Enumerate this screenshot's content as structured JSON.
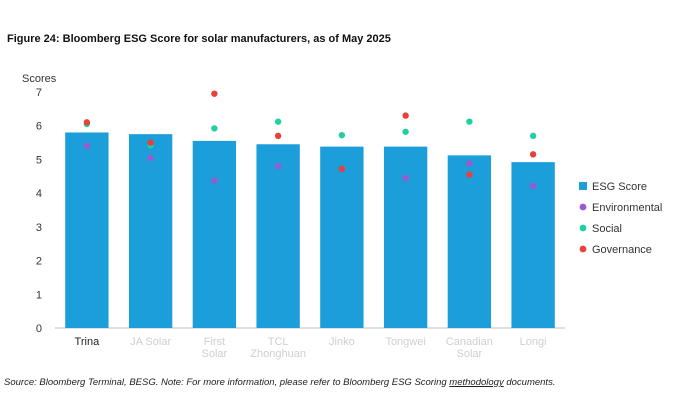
{
  "title": "Figure 24: Bloomberg ESG Score for solar manufacturers, as of May 2025",
  "source": {
    "prefix": "Source: Bloomberg Terminal, BESG. Note: For more information, please refer to Bloomberg ESG Scoring ",
    "link": "methodology",
    "suffix": " documents."
  },
  "chart_data": {
    "type": "bar",
    "ylabel": "Scores",
    "ylim": [
      0,
      7
    ],
    "yticks": [
      0,
      1,
      2,
      3,
      4,
      5,
      6,
      7
    ],
    "grid": false,
    "legend_position": "right",
    "categories": [
      "Trina",
      "JA Solar",
      "First Solar",
      "TCL Zhonghuan",
      "Jinko",
      "Tongwei",
      "Canadian Solar",
      "Longi"
    ],
    "series": [
      {
        "name": "ESG Score",
        "kind": "bar",
        "color": "#1b9ed9",
        "values": [
          5.8,
          5.75,
          5.55,
          5.45,
          5.38,
          5.38,
          5.12,
          4.92
        ]
      },
      {
        "name": "Environmental",
        "kind": "point",
        "color": "#9b59d0",
        "values": [
          5.4,
          5.05,
          4.37,
          4.8,
          4.72,
          4.45,
          4.88,
          4.22
        ]
      },
      {
        "name": "Social",
        "kind": "point",
        "color": "#1fd0a3",
        "values": [
          6.05,
          5.42,
          5.92,
          6.12,
          5.72,
          5.82,
          6.12,
          5.7
        ]
      },
      {
        "name": "Governance",
        "kind": "point",
        "color": "#e8403a",
        "values": [
          6.1,
          5.5,
          6.95,
          5.7,
          4.72,
          6.3,
          4.55,
          5.15
        ]
      }
    ]
  }
}
